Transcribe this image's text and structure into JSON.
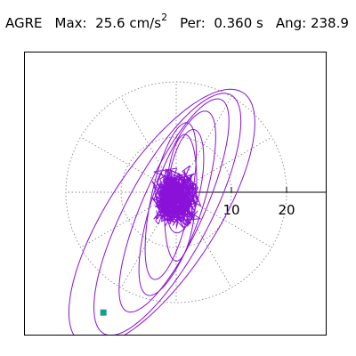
{
  "header": {
    "station": "AGRE",
    "max_label": "Max:",
    "max_value": "25.6 cm/s",
    "max_exponent": "2",
    "per_label": "Per:",
    "per_value": "0.360 s",
    "ang_label": "Ang:",
    "ang_value": "238.9"
  },
  "chart_data": {
    "type": "polar-particle-motion",
    "title": "AGRE",
    "max_acceleration": 25.6,
    "max_unit": "cm/s^2",
    "period_s": 0.36,
    "angle_deg": 238.9,
    "radial_ticks": [
      10,
      20
    ],
    "radial_tick_labels": [
      "10",
      "20"
    ],
    "rings": [
      10,
      20
    ],
    "spokes_deg": [
      0,
      30,
      60,
      90,
      120,
      150,
      180,
      210,
      240,
      270,
      300,
      330
    ],
    "grid": true,
    "trace_color": "#8a12d8",
    "marker_color": "#16a085",
    "peak_point": {
      "x": -13.2,
      "y": -21.8
    },
    "trace": {
      "loops": [
        {
          "rx": 27.0,
          "ry": 9.8,
          "rot": 57,
          "cx": -2.6,
          "cy": -4.6
        },
        {
          "rx": 24.5,
          "ry": 7.6,
          "rot": 62,
          "cx": -1.6,
          "cy": -4.0
        },
        {
          "rx": 21.0,
          "ry": 5.6,
          "rot": 66,
          "cx": -0.4,
          "cy": -2.4
        },
        {
          "rx": 17.5,
          "ry": 4.6,
          "rot": 72,
          "cx": 0.2,
          "cy": -2.0
        },
        {
          "rx": 14.5,
          "ry": 3.6,
          "rot": 78,
          "cx": -1.0,
          "cy": -1.6
        },
        {
          "rx": 9.5,
          "ry": 3.0,
          "rot": 80,
          "cx": 1.6,
          "cy": 2.0
        },
        {
          "rx": 11.5,
          "ry": 2.8,
          "rot": 86,
          "cx": 0.8,
          "cy": -1.0
        }
      ],
      "noise_amplitude": 6.2,
      "noise_center": {
        "x": 0.0,
        "y": -1.2
      }
    }
  }
}
